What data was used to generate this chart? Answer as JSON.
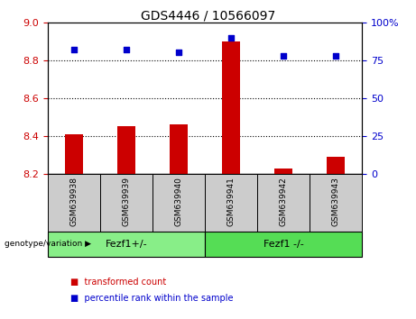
{
  "title": "GDS4446 / 10566097",
  "samples": [
    "GSM639938",
    "GSM639939",
    "GSM639940",
    "GSM639941",
    "GSM639942",
    "GSM639943"
  ],
  "bar_values": [
    8.41,
    8.45,
    8.46,
    8.9,
    8.23,
    8.29
  ],
  "scatter_values": [
    82,
    82,
    80,
    90,
    78,
    78
  ],
  "ylim_left": [
    8.2,
    9.0
  ],
  "ylim_right": [
    0,
    100
  ],
  "yticks_left": [
    8.2,
    8.4,
    8.6,
    8.8,
    9.0
  ],
  "yticks_right": [
    0,
    25,
    50,
    75,
    100
  ],
  "bar_color": "#cc0000",
  "scatter_color": "#0000cc",
  "bar_bottom": 8.2,
  "groups": [
    {
      "label": "Fezf1+/-",
      "indices": [
        0,
        1,
        2
      ],
      "color": "#88ee88"
    },
    {
      "label": "Fezf1 -/-",
      "indices": [
        3,
        4,
        5
      ],
      "color": "#55dd55"
    }
  ],
  "group_label": "genotype/variation",
  "legend_items": [
    {
      "label": "transformed count",
      "color": "#cc0000"
    },
    {
      "label": "percentile rank within the sample",
      "color": "#0000cc"
    }
  ],
  "tick_label_color_left": "#cc0000",
  "tick_label_color_right": "#0000cc",
  "xticklabel_bg": "#cccccc",
  "fig_bg": "#ffffff",
  "title_fontsize": 10
}
